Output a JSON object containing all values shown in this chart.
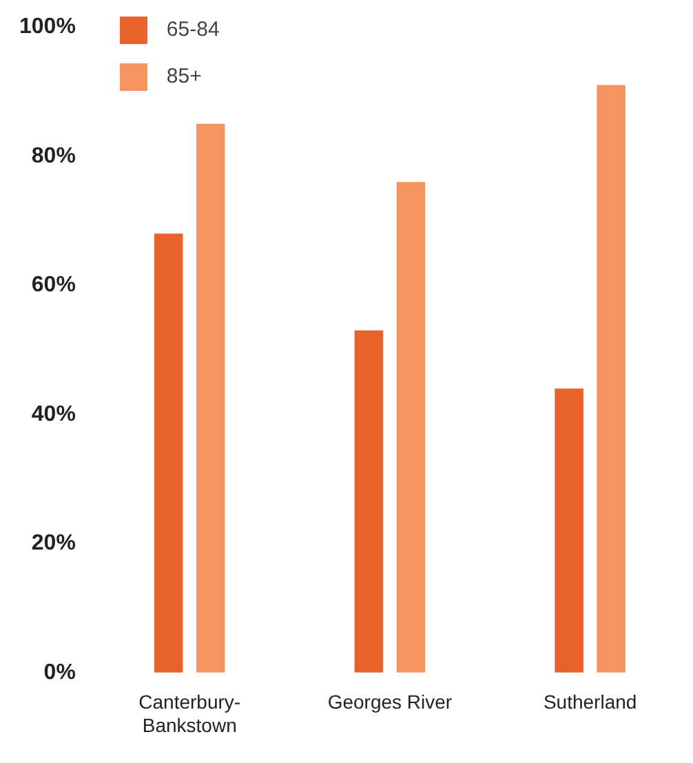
{
  "chart_data": {
    "type": "bar",
    "categories": [
      "Canterbury-Bankstown",
      "Georges River",
      "Sutherland"
    ],
    "series": [
      {
        "name": "65-84",
        "color": "#e8622a",
        "values": [
          68,
          53,
          44
        ]
      },
      {
        "name": "85+",
        "color": "#f4955f",
        "values": [
          85,
          76,
          91
        ]
      }
    ],
    "ylim": [
      0,
      100
    ],
    "yticks": [
      {
        "value": 0,
        "label": "0%"
      },
      {
        "value": 20,
        "label": "20%"
      },
      {
        "value": 40,
        "label": "40%"
      },
      {
        "value": 60,
        "label": "60%"
      },
      {
        "value": 80,
        "label": "80%"
      },
      {
        "value": 100,
        "label": "100%"
      }
    ],
    "grid": false,
    "legend": "top left"
  }
}
